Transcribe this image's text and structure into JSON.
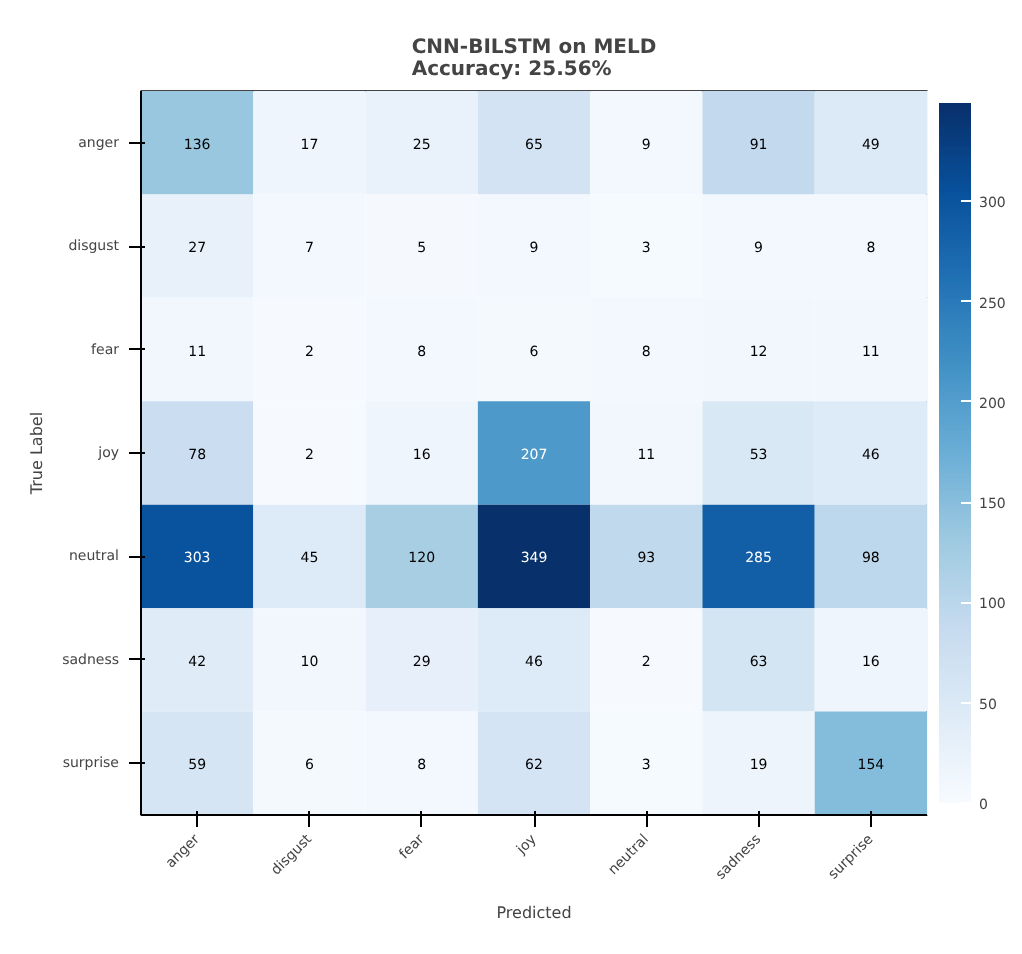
{
  "chart_data": {
    "type": "heatmap",
    "title": "CNN-BILSTM on MELD\nAccuracy: 25.56%",
    "xlabel": "Predicted",
    "ylabel": "True Label",
    "categories": [
      "anger",
      "disgust",
      "fear",
      "joy",
      "neutral",
      "sadness",
      "surprise"
    ],
    "y_categories": [
      "anger",
      "disgust",
      "fear",
      "joy",
      "neutral",
      "sadness",
      "surprise"
    ],
    "cells": [
      [
        136,
        17,
        25,
        65,
        9,
        91,
        49
      ],
      [
        27,
        7,
        5,
        9,
        3,
        9,
        8
      ],
      [
        11,
        2,
        8,
        6,
        8,
        12,
        11
      ],
      [
        78,
        2,
        16,
        207,
        11,
        53,
        46
      ],
      [
        303,
        45,
        120,
        349,
        93,
        285,
        98
      ],
      [
        42,
        10,
        29,
        46,
        2,
        63,
        16
      ],
      [
        59,
        6,
        8,
        62,
        3,
        19,
        154
      ]
    ],
    "data_labels": true,
    "clim": [
      0,
      349
    ],
    "cticks": [
      0,
      50,
      100,
      150,
      200,
      250,
      300
    ],
    "grid": false
  }
}
